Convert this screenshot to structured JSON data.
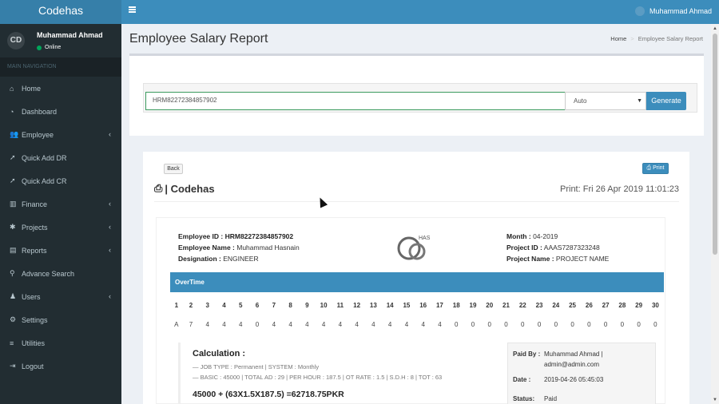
{
  "app": {
    "logo": "Codehas"
  },
  "topbar": {
    "user_name": "Muhammad Ahmad"
  },
  "sidebar": {
    "user": {
      "avatar_text": "CD",
      "name": "Muhammad Ahmad",
      "status": "Online"
    },
    "header": "MAIN NAVIGATION",
    "items": [
      {
        "label": "Home",
        "icon": "home-icon",
        "glyph": "⌂",
        "caret": false
      },
      {
        "label": "Dashboard",
        "icon": "dashboard-icon",
        "glyph": "◔",
        "caret": false
      },
      {
        "label": "Employee",
        "icon": "users-icon",
        "glyph": "👥",
        "caret": true
      },
      {
        "label": "Quick Add DR",
        "icon": "rocket-icon",
        "glyph": "➚",
        "caret": false
      },
      {
        "label": "Quick Add CR",
        "icon": "rocket-icon",
        "glyph": "➚",
        "caret": false
      },
      {
        "label": "Finance",
        "icon": "chart-icon",
        "glyph": "▥",
        "caret": true
      },
      {
        "label": "Projects",
        "icon": "bug-icon",
        "glyph": "✱",
        "caret": true
      },
      {
        "label": "Reports",
        "icon": "file-icon",
        "glyph": "▤",
        "caret": true
      },
      {
        "label": "Advance Search",
        "icon": "search-icon",
        "glyph": "⚲",
        "caret": false
      },
      {
        "label": "Users",
        "icon": "user-icon",
        "glyph": "♟",
        "caret": true
      },
      {
        "label": "Settings",
        "icon": "gears-icon",
        "glyph": "⚙",
        "caret": false
      },
      {
        "label": "Utilities",
        "icon": "database-icon",
        "glyph": "≡",
        "caret": false
      },
      {
        "label": "Logout",
        "icon": "logout-icon",
        "glyph": "⇥",
        "caret": false
      }
    ]
  },
  "page": {
    "title": "Employee Salary Report",
    "breadcrumb": {
      "home": "Home",
      "current": "Employee Salary Report"
    }
  },
  "form": {
    "employee_id_value": "HRM82272384857902",
    "mode_value": "Auto",
    "generate_label": "Generate"
  },
  "report": {
    "back_label": "Back",
    "print_label": "Print",
    "company": "| Codehas",
    "print_date": "Print: Fri 26 Apr 2019 11:01:23",
    "logo_text": "HAS",
    "employee": {
      "id_label": "Employee ID :",
      "id": "HRM82272384857902",
      "name_label": "Employee Name :",
      "name": "Muhammad Hasnain",
      "designation_label": "Designation :",
      "designation": "ENGINEER"
    },
    "meta": {
      "month_label": "Month :",
      "month": "04-2019",
      "project_id_label": "Project ID :",
      "project_id": "AAAS7287323248",
      "project_name_label": "Project Name :",
      "project_name": "PROJECT NAME"
    },
    "overtime_label": "OverTime",
    "days": [
      "1",
      "2",
      "3",
      "4",
      "5",
      "6",
      "7",
      "8",
      "9",
      "10",
      "11",
      "12",
      "13",
      "14",
      "15",
      "16",
      "17",
      "18",
      "19",
      "20",
      "21",
      "22",
      "23",
      "24",
      "25",
      "26",
      "27",
      "28",
      "29",
      "30"
    ],
    "hours": [
      "A",
      "7",
      "4",
      "4",
      "4",
      "0",
      "4",
      "4",
      "4",
      "4",
      "4",
      "4",
      "4",
      "4",
      "4",
      "4",
      "4",
      "0",
      "0",
      "0",
      "0",
      "0",
      "0",
      "0",
      "0",
      "0",
      "0",
      "0",
      "0",
      "0"
    ],
    "calculation": {
      "title": "Calculation :",
      "line1": "— JOB TYPE : Permanent | SYSTEM : Monthly",
      "line2": "— BASIC : 45000 | TOTAL AD : 29 | PER HOUR : 187.5 | OT RATE : 1.5 | S.D.H : 8 | TOT : 63",
      "formula": "45000 + (63X1.5X187.5) =62718.75PKR"
    },
    "payment": {
      "paid_by_label": "Paid By :",
      "paid_by": "Muhammad Ahmad | admin@admin.com",
      "date_label": "Date :",
      "date": "2019-04-26 05:45:03",
      "status_label": "Status:",
      "status": "Paid"
    }
  },
  "colors": {
    "primary": "#3c8dbc",
    "sidebar": "#222d32",
    "logo_bg": "#367fa9",
    "online": "#00a65a"
  }
}
